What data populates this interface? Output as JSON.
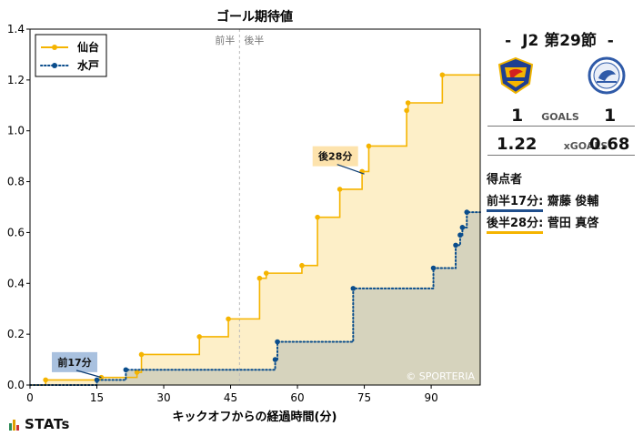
{
  "chart_data": {
    "type": "line",
    "step": true,
    "title": "ゴール期待値",
    "xlabel": "キックオフからの経過時間(分)",
    "ylabel": "",
    "xlim": [
      0,
      101
    ],
    "ylim": [
      0,
      1.4
    ],
    "xticks": [
      0,
      15,
      30,
      45,
      60,
      75,
      90
    ],
    "yticks": [
      0.0,
      0.2,
      0.4,
      0.6,
      0.8,
      1.0,
      1.2,
      1.4
    ],
    "legend_position": "top-left",
    "halftime": {
      "x": 47,
      "first_label": "前半",
      "second_label": "後半"
    },
    "series": [
      {
        "name": "仙台",
        "color": "#f5b400",
        "fill": "#fdefc8",
        "line_style": "solid",
        "points": [
          {
            "x": 3.5,
            "y": 0.02
          },
          {
            "x": 16,
            "y": 0.03
          },
          {
            "x": 24,
            "y": 0.05
          },
          {
            "x": 25,
            "y": 0.12
          },
          {
            "x": 38,
            "y": 0.19
          },
          {
            "x": 44.5,
            "y": 0.26
          },
          {
            "x": 51.5,
            "y": 0.42
          },
          {
            "x": 53,
            "y": 0.44
          },
          {
            "x": 61,
            "y": 0.47
          },
          {
            "x": 64.5,
            "y": 0.66
          },
          {
            "x": 69.5,
            "y": 0.77
          },
          {
            "x": 74.5,
            "y": 0.84
          },
          {
            "x": 76,
            "y": 0.94
          },
          {
            "x": 84.5,
            "y": 1.08
          },
          {
            "x": 84.8,
            "y": 1.11
          },
          {
            "x": 92.5,
            "y": 1.22
          }
        ]
      },
      {
        "name": "水戸",
        "color": "#0a4d8c",
        "fill": "#d6d3bd",
        "line_style": "dotted",
        "points": [
          {
            "x": 15,
            "y": 0.02
          },
          {
            "x": 21.5,
            "y": 0.06
          },
          {
            "x": 55,
            "y": 0.1
          },
          {
            "x": 55.5,
            "y": 0.17
          },
          {
            "x": 72.5,
            "y": 0.38
          },
          {
            "x": 90.5,
            "y": 0.46
          },
          {
            "x": 95.5,
            "y": 0.55
          },
          {
            "x": 96.5,
            "y": 0.59
          },
          {
            "x": 97,
            "y": 0.62
          },
          {
            "x": 98,
            "y": 0.68
          }
        ]
      }
    ],
    "annotations": [
      {
        "text": "前17分",
        "x": 16,
        "y": 0.03,
        "label_x": 10,
        "label_y": 0.09,
        "box_color": "#a9c1df"
      },
      {
        "text": "後28分",
        "x": 75,
        "y": 0.83,
        "label_x": 68.5,
        "label_y": 0.9,
        "box_color": "#fde3ad"
      }
    ],
    "watermark": "© SPORTERIA"
  },
  "match": {
    "prefix": "-",
    "title": "J2 第29節",
    "suffix": "-",
    "home_goals": "1",
    "away_goals": "1",
    "goals_label": "GOALS",
    "home_xg": "1.22",
    "away_xg": "0.68",
    "xg_label": "xGOALS"
  },
  "scorers": {
    "title": "得点者",
    "items": [
      {
        "time": "前半17分:",
        "name": "齋藤 俊輔",
        "color": "#1f4e8c"
      },
      {
        "time": "後半28分:",
        "name": "菅田 真啓",
        "color": "#f5b400"
      }
    ]
  },
  "brand": {
    "name": "STATs",
    "bar_colors": [
      "#2e8b57",
      "#e0a000",
      "#cc3333"
    ]
  }
}
